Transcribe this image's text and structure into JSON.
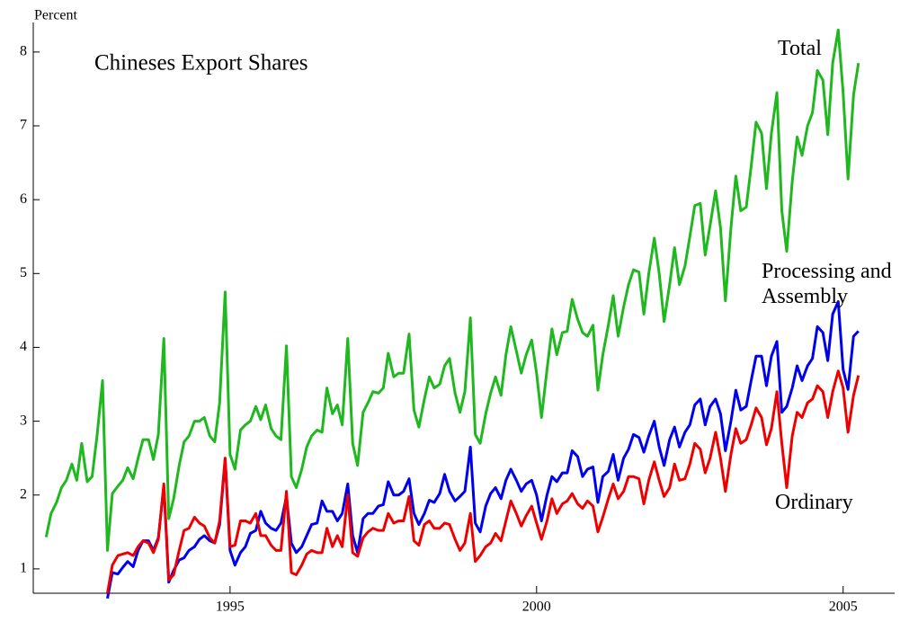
{
  "chart_data": {
    "type": "line",
    "title": "Chineses Export Shares",
    "ylabel": "Percent",
    "x": [
      1992,
      1992.08,
      1992.17,
      1992.25,
      1992.33,
      1992.42,
      1992.5,
      1992.58,
      1992.67,
      1992.75,
      1992.83,
      1992.92,
      1993,
      1993.08,
      1993.17,
      1993.25,
      1993.33,
      1993.42,
      1993.5,
      1993.58,
      1993.67,
      1993.75,
      1993.83,
      1993.92,
      1994,
      1994.08,
      1994.17,
      1994.25,
      1994.33,
      1994.42,
      1994.5,
      1994.58,
      1994.67,
      1994.75,
      1994.83,
      1994.92,
      1995,
      1995.08,
      1995.17,
      1995.25,
      1995.33,
      1995.42,
      1995.5,
      1995.58,
      1995.67,
      1995.75,
      1995.83,
      1995.92,
      1996,
      1996.08,
      1996.17,
      1996.25,
      1996.33,
      1996.42,
      1996.5,
      1996.58,
      1996.67,
      1996.75,
      1996.83,
      1996.92,
      1997,
      1997.08,
      1997.17,
      1997.25,
      1997.33,
      1997.42,
      1997.5,
      1997.58,
      1997.67,
      1997.75,
      1997.83,
      1997.92,
      1998,
      1998.08,
      1998.17,
      1998.25,
      1998.33,
      1998.42,
      1998.5,
      1998.58,
      1998.67,
      1998.75,
      1998.83,
      1998.92,
      1999,
      1999.08,
      1999.17,
      1999.25,
      1999.33,
      1999.42,
      1999.5,
      1999.58,
      1999.67,
      1999.75,
      1999.83,
      1999.92,
      2000,
      2000.08,
      2000.17,
      2000.25,
      2000.33,
      2000.42,
      2000.5,
      2000.58,
      2000.67,
      2000.75,
      2000.83,
      2000.92,
      2001,
      2001.08,
      2001.17,
      2001.25,
      2001.33,
      2001.42,
      2001.5,
      2001.58,
      2001.67,
      2001.75,
      2001.83,
      2001.92,
      2002,
      2002.08,
      2002.17,
      2002.25,
      2002.33,
      2002.42,
      2002.5,
      2002.58,
      2002.67,
      2002.75,
      2002.83,
      2002.92,
      2003,
      2003.08,
      2003.17,
      2003.25,
      2003.33,
      2003.42,
      2003.5,
      2003.58,
      2003.67,
      2003.75,
      2003.83,
      2003.92,
      2004,
      2004.08,
      2004.17,
      2004.25,
      2004.33,
      2004.42,
      2004.5,
      2004.58,
      2004.67,
      2004.75,
      2004.83,
      2004.92,
      2005,
      2005.08,
      2005.17,
      2005.25
    ],
    "series": [
      {
        "name": "Total",
        "color": "#1fb81f",
        "values": [
          1.43,
          1.75,
          1.9,
          2.1,
          2.2,
          2.42,
          2.2,
          2.7,
          2.18,
          2.25,
          2.8,
          3.55,
          1.25,
          2.02,
          2.12,
          2.2,
          2.37,
          2.22,
          2.5,
          2.75,
          2.75,
          2.48,
          2.82,
          4.12,
          1.68,
          1.95,
          2.4,
          2.72,
          2.8,
          3.0,
          3.0,
          3.05,
          2.8,
          2.72,
          3.25,
          4.75,
          2.55,
          2.35,
          2.88,
          2.95,
          3.0,
          3.2,
          3.02,
          3.22,
          2.9,
          2.8,
          2.75,
          4.02,
          2.25,
          2.1,
          2.35,
          2.65,
          2.8,
          2.88,
          2.85,
          3.45,
          3.1,
          3.22,
          2.95,
          4.12,
          2.7,
          2.4,
          3.12,
          3.25,
          3.4,
          3.38,
          3.45,
          3.92,
          3.6,
          3.65,
          3.65,
          4.18,
          3.15,
          2.92,
          3.3,
          3.6,
          3.45,
          3.5,
          3.75,
          3.85,
          3.38,
          3.12,
          3.4,
          4.4,
          2.82,
          2.7,
          3.1,
          3.38,
          3.6,
          3.35,
          3.9,
          4.28,
          3.95,
          3.65,
          3.9,
          4.1,
          3.65,
          3.05,
          3.7,
          4.25,
          3.9,
          4.2,
          4.22,
          4.65,
          4.38,
          4.2,
          4.15,
          4.3,
          3.42,
          3.9,
          4.3,
          4.7,
          4.15,
          4.55,
          4.85,
          5.05,
          5.02,
          4.45,
          5.0,
          5.48,
          5.0,
          4.35,
          4.85,
          5.35,
          4.85,
          5.1,
          5.5,
          5.92,
          5.95,
          5.25,
          5.65,
          6.12,
          5.62,
          4.63,
          5.62,
          6.32,
          5.85,
          5.9,
          6.45,
          7.05,
          6.9,
          6.15,
          6.9,
          7.45,
          5.85,
          5.3,
          6.25,
          6.85,
          6.6,
          7.0,
          7.18,
          7.75,
          7.62,
          6.88,
          7.85,
          8.3,
          7.45,
          6.28,
          7.42,
          7.85
        ]
      },
      {
        "name": "Processing and Assembly",
        "color": "#0000ee",
        "values": [
          null,
          null,
          null,
          null,
          null,
          null,
          null,
          null,
          null,
          null,
          null,
          null,
          0.6,
          0.95,
          0.93,
          1.02,
          1.1,
          1.03,
          1.25,
          1.38,
          1.38,
          1.25,
          1.42,
          2.12,
          0.82,
          0.98,
          1.12,
          1.15,
          1.25,
          1.3,
          1.4,
          1.45,
          1.38,
          1.35,
          1.6,
          2.48,
          1.25,
          1.05,
          1.22,
          1.3,
          1.48,
          1.52,
          1.78,
          1.62,
          1.55,
          1.52,
          1.62,
          1.98,
          1.35,
          1.22,
          1.3,
          1.45,
          1.6,
          1.62,
          1.92,
          1.78,
          1.78,
          1.65,
          1.75,
          2.15,
          1.45,
          1.22,
          1.68,
          1.75,
          1.75,
          1.85,
          1.87,
          2.18,
          2.0,
          2.0,
          2.05,
          2.22,
          1.75,
          1.6,
          1.75,
          1.93,
          1.9,
          2.02,
          2.28,
          2.05,
          1.92,
          1.98,
          2.05,
          2.65,
          1.62,
          1.5,
          1.85,
          2.02,
          2.1,
          1.95,
          2.2,
          2.35,
          2.2,
          2.05,
          2.15,
          2.2,
          2.0,
          1.65,
          2.0,
          2.25,
          2.18,
          2.3,
          2.3,
          2.6,
          2.52,
          2.25,
          2.35,
          2.38,
          1.9,
          2.25,
          2.32,
          2.55,
          2.2,
          2.5,
          2.62,
          2.82,
          2.78,
          2.58,
          2.8,
          3.0,
          2.65,
          2.4,
          2.75,
          2.92,
          2.65,
          2.85,
          2.95,
          3.22,
          3.3,
          2.95,
          3.2,
          3.3,
          3.1,
          2.6,
          3.0,
          3.42,
          3.15,
          3.2,
          3.55,
          3.88,
          3.88,
          3.48,
          3.88,
          4.08,
          3.12,
          3.2,
          3.45,
          3.75,
          3.55,
          3.75,
          3.85,
          4.28,
          4.2,
          3.82,
          4.45,
          4.62,
          3.7,
          3.43,
          4.15,
          4.22
        ]
      },
      {
        "name": "Ordinary",
        "color": "#ee0000",
        "values": [
          null,
          null,
          null,
          null,
          null,
          null,
          null,
          null,
          null,
          null,
          null,
          null,
          0.67,
          1.05,
          1.18,
          1.2,
          1.22,
          1.18,
          1.3,
          1.38,
          1.35,
          1.22,
          1.4,
          2.15,
          0.85,
          0.92,
          1.25,
          1.52,
          1.55,
          1.7,
          1.62,
          1.58,
          1.42,
          1.35,
          1.65,
          2.5,
          1.3,
          1.32,
          1.65,
          1.65,
          1.62,
          1.75,
          1.45,
          1.45,
          1.32,
          1.25,
          1.25,
          2.05,
          0.95,
          0.92,
          1.05,
          1.2,
          1.25,
          1.22,
          1.22,
          1.55,
          1.3,
          1.45,
          1.3,
          2.0,
          1.22,
          1.17,
          1.42,
          1.5,
          1.55,
          1.52,
          1.52,
          1.75,
          1.62,
          1.65,
          1.65,
          1.98,
          1.38,
          1.32,
          1.6,
          1.65,
          1.55,
          1.55,
          1.62,
          1.6,
          1.4,
          1.25,
          1.35,
          1.75,
          1.1,
          1.18,
          1.3,
          1.35,
          1.48,
          1.38,
          1.65,
          1.92,
          1.75,
          1.58,
          1.72,
          1.85,
          1.62,
          1.4,
          1.65,
          1.95,
          1.75,
          1.88,
          1.92,
          2.02,
          1.88,
          1.82,
          1.92,
          1.85,
          1.5,
          1.7,
          1.95,
          2.15,
          1.95,
          2.05,
          2.25,
          2.25,
          2.22,
          1.88,
          2.2,
          2.45,
          2.2,
          1.98,
          2.1,
          2.42,
          2.2,
          2.22,
          2.42,
          2.7,
          2.62,
          2.3,
          2.5,
          2.85,
          2.5,
          2.05,
          2.55,
          2.9,
          2.7,
          2.75,
          2.95,
          3.18,
          3.05,
          2.68,
          2.9,
          3.4,
          2.7,
          2.1,
          2.8,
          3.12,
          3.05,
          3.25,
          3.3,
          3.48,
          3.4,
          3.05,
          3.4,
          3.68,
          3.45,
          2.85,
          3.35,
          3.62
        ]
      }
    ],
    "xlim": [
      1991.79,
      2005.84
    ],
    "xticks": [
      1995,
      2000,
      2005
    ],
    "ylim": [
      0.67,
      8.4
    ],
    "yticks": [
      1,
      2,
      3,
      4,
      5,
      6,
      7,
      8
    ]
  }
}
